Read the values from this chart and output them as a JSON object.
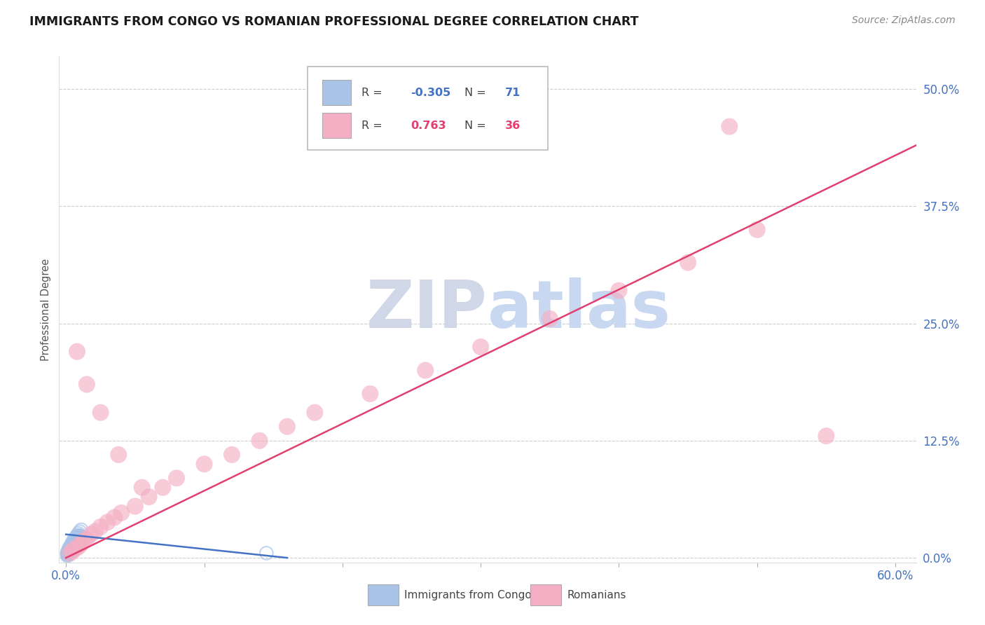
{
  "title": "IMMIGRANTS FROM CONGO VS ROMANIAN PROFESSIONAL DEGREE CORRELATION CHART",
  "source": "Source: ZipAtlas.com",
  "ylabel": "Professional Degree",
  "ytick_labels": [
    "0.0%",
    "12.5%",
    "25.0%",
    "37.5%",
    "50.0%"
  ],
  "ytick_values": [
    0.0,
    0.125,
    0.25,
    0.375,
    0.5
  ],
  "xtick_values": [
    0.0,
    0.1,
    0.2,
    0.3,
    0.4,
    0.5,
    0.6
  ],
  "xlim": [
    -0.005,
    0.615
  ],
  "ylim": [
    -0.005,
    0.535
  ],
  "legend_R_N": [
    {
      "R": "-0.305",
      "N": "71",
      "box_color": "#aac4e8",
      "text_color": "#4472c4"
    },
    {
      "R": "0.763",
      "N": "36",
      "box_color": "#f4afc4",
      "text_color": "#e04070"
    }
  ],
  "legend_entries": [
    {
      "label": "Immigrants from Congo",
      "color": "#aac4e8"
    },
    {
      "label": "Romanians",
      "color": "#f4afc4"
    }
  ],
  "watermark": "ZIPatlas",
  "congo_scatter_x": [
    0.002,
    0.003,
    0.004,
    0.005,
    0.006,
    0.007,
    0.008,
    0.009,
    0.01,
    0.011,
    0.001,
    0.002,
    0.003,
    0.004,
    0.005,
    0.006,
    0.007,
    0.008,
    0.009,
    0.01,
    0.001,
    0.002,
    0.003,
    0.004,
    0.005,
    0.006,
    0.007,
    0.008,
    0.009,
    0.01,
    0.001,
    0.002,
    0.003,
    0.004,
    0.005,
    0.006,
    0.007,
    0.008,
    0.009,
    0.01,
    0.001,
    0.002,
    0.003,
    0.004,
    0.005,
    0.006,
    0.007,
    0.008,
    0.009,
    0.01,
    0.001,
    0.002,
    0.003,
    0.004,
    0.005,
    0.006,
    0.007,
    0.008,
    0.009,
    0.01,
    0.001,
    0.002,
    0.003,
    0.004,
    0.005,
    0.006,
    0.007,
    0.008,
    0.009,
    0.01,
    0.145
  ],
  "congo_scatter_y": [
    0.01,
    0.012,
    0.015,
    0.018,
    0.02,
    0.022,
    0.024,
    0.026,
    0.028,
    0.03,
    0.005,
    0.007,
    0.009,
    0.011,
    0.013,
    0.015,
    0.017,
    0.019,
    0.021,
    0.023,
    0.005,
    0.007,
    0.009,
    0.011,
    0.013,
    0.015,
    0.017,
    0.019,
    0.021,
    0.023,
    0.006,
    0.008,
    0.01,
    0.012,
    0.014,
    0.016,
    0.018,
    0.02,
    0.022,
    0.024,
    0.004,
    0.006,
    0.008,
    0.01,
    0.012,
    0.014,
    0.016,
    0.018,
    0.02,
    0.022,
    0.003,
    0.005,
    0.007,
    0.009,
    0.011,
    0.013,
    0.015,
    0.017,
    0.019,
    0.021,
    0.002,
    0.004,
    0.006,
    0.008,
    0.01,
    0.012,
    0.014,
    0.016,
    0.018,
    0.02,
    0.005
  ],
  "romanian_scatter_x": [
    0.003,
    0.005,
    0.007,
    0.009,
    0.011,
    0.013,
    0.015,
    0.018,
    0.021,
    0.025,
    0.03,
    0.035,
    0.04,
    0.05,
    0.06,
    0.07,
    0.08,
    0.1,
    0.12,
    0.14,
    0.16,
    0.18,
    0.22,
    0.26,
    0.3,
    0.35,
    0.4,
    0.45,
    0.5,
    0.55,
    0.008,
    0.015,
    0.025,
    0.038,
    0.055,
    0.48
  ],
  "romanian_scatter_y": [
    0.005,
    0.008,
    0.01,
    0.012,
    0.015,
    0.018,
    0.02,
    0.025,
    0.028,
    0.033,
    0.038,
    0.043,
    0.048,
    0.055,
    0.065,
    0.075,
    0.085,
    0.1,
    0.11,
    0.125,
    0.14,
    0.155,
    0.175,
    0.2,
    0.225,
    0.255,
    0.285,
    0.315,
    0.35,
    0.13,
    0.22,
    0.185,
    0.155,
    0.11,
    0.075,
    0.46
  ],
  "congo_line_x": [
    0.0,
    0.16
  ],
  "congo_line_y": [
    0.025,
    0.0
  ],
  "romanian_line_x": [
    0.0,
    0.615
  ],
  "romanian_line_y": [
    0.0,
    0.44
  ],
  "title_color": "#1a1a1a",
  "title_fontsize": 12.5,
  "axis_color": "#4472c4",
  "grid_color": "#cccccc",
  "scatter_congo_color": "#aac4e8",
  "scatter_romanian_color": "#f4afc4",
  "line_congo_color": "#4472c4",
  "line_romanian_color": "#e04070",
  "watermark_color": "#d0d8e8",
  "watermark_color2": "#c8d8f0"
}
